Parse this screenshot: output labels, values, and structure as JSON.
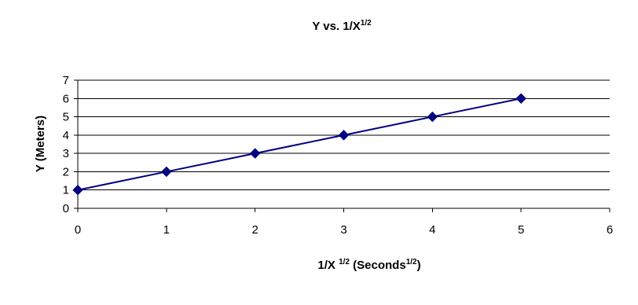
{
  "chart_data": {
    "type": "line",
    "title": {
      "main": "Y vs. 1/X",
      "superscript": "1/2"
    },
    "xlabel": {
      "prefix": "1/X ",
      "prefix_superscript": "1/2",
      "suffix": " (Seconds",
      "suffix_superscript": "1/2",
      "close": ")"
    },
    "ylabel": "Y (Meters)",
    "xlim": [
      0,
      6
    ],
    "ylim": [
      0,
      7
    ],
    "x_ticks": [
      "0",
      "1",
      "2",
      "3",
      "4",
      "5",
      "6"
    ],
    "y_ticks": [
      "0",
      "1",
      "2",
      "3",
      "4",
      "5",
      "6",
      "7"
    ],
    "grid": {
      "horizontal": true,
      "vertical": false
    },
    "legend": "none",
    "series": [
      {
        "x": [
          0,
          1,
          2,
          3,
          4,
          5
        ],
        "y": [
          1,
          2,
          3,
          4,
          5,
          6
        ],
        "color": "#000080",
        "marker": "diamond"
      }
    ]
  }
}
